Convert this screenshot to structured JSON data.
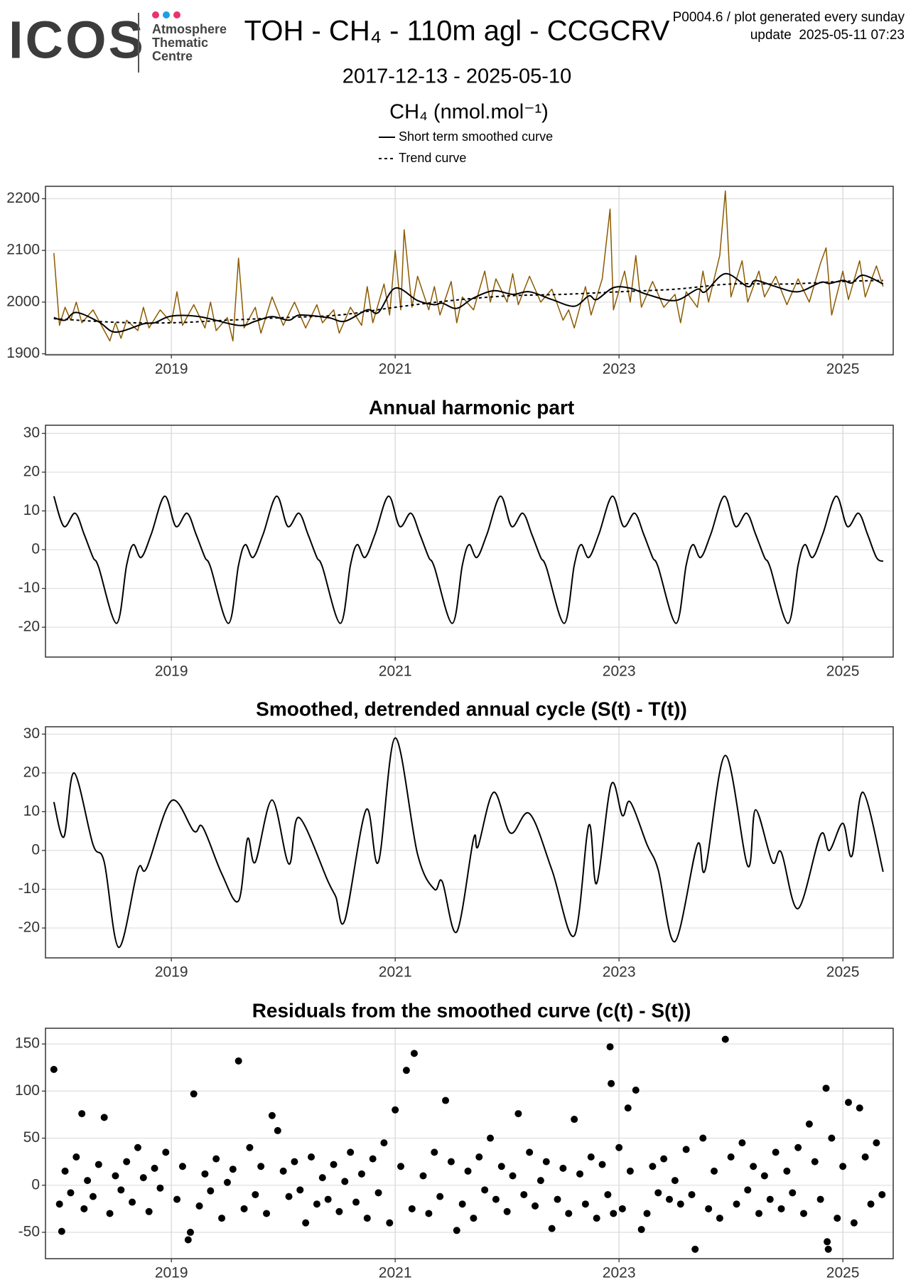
{
  "header": {
    "logo": "ICOS",
    "logo_sub": [
      "Atmosphere",
      "Thematic",
      "Centre"
    ],
    "title": "TOH - CH₄ - 110m agl - CCGCRV",
    "note": "P0004.6 / plot generated every sunday",
    "update": "update  2025-05-11 07:23",
    "period": "2017-12-13 - 2025-05-10"
  },
  "chart_data": [
    {
      "type": "line",
      "ylabel": "CH₄ (nmol.mol⁻¹)",
      "xlim": [
        2017.875,
        2025.45
      ],
      "xticks": [
        2019,
        2021,
        2023,
        2025
      ],
      "ylim": [
        1898,
        2224
      ],
      "yticks": [
        1900,
        2000,
        2100,
        2200
      ],
      "grid": true,
      "series": [
        {
          "color": "#8b5a00",
          "x": [
            2017.95,
            2018.0,
            2018.05,
            2018.1,
            2018.15,
            2018.2,
            2018.3,
            2018.4,
            2018.45,
            2018.5,
            2018.55,
            2018.6,
            2018.7,
            2018.75,
            2018.8,
            2018.9,
            2019.0,
            2019.05,
            2019.1,
            2019.2,
            2019.3,
            2019.35,
            2019.4,
            2019.5,
            2019.55,
            2019.6,
            2019.65,
            2019.75,
            2019.8,
            2019.9,
            2020.0,
            2020.1,
            2020.2,
            2020.3,
            2020.35,
            2020.45,
            2020.5,
            2020.6,
            2020.7,
            2020.75,
            2020.8,
            2020.9,
            2020.95,
            2021.0,
            2021.05,
            2021.08,
            2021.15,
            2021.2,
            2021.3,
            2021.35,
            2021.4,
            2021.5,
            2021.55,
            2021.6,
            2021.7,
            2021.8,
            2021.85,
            2021.9,
            2022.0,
            2022.05,
            2022.1,
            2022.2,
            2022.3,
            2022.4,
            2022.5,
            2022.55,
            2022.6,
            2022.7,
            2022.75,
            2022.85,
            2022.92,
            2022.95,
            2023.05,
            2023.1,
            2023.15,
            2023.2,
            2023.3,
            2023.4,
            2023.5,
            2023.55,
            2023.6,
            2023.7,
            2023.75,
            2023.8,
            2023.9,
            2023.95,
            2024.0,
            2024.1,
            2024.15,
            2024.25,
            2024.3,
            2024.4,
            2024.5,
            2024.6,
            2024.7,
            2024.8,
            2024.85,
            2024.9,
            2025.0,
            2025.05,
            2025.15,
            2025.2,
            2025.3,
            2025.36
          ],
          "values": [
            2095,
            1955,
            1990,
            1965,
            2000,
            1960,
            1985,
            1945,
            1925,
            1960,
            1930,
            1965,
            1945,
            1990,
            1950,
            1985,
            1960,
            2020,
            1955,
            1995,
            1950,
            2000,
            1945,
            1970,
            1925,
            2085,
            1950,
            1990,
            1940,
            2010,
            1955,
            2000,
            1950,
            1995,
            1960,
            1985,
            1940,
            1990,
            1955,
            2030,
            1960,
            2035,
            1975,
            2100,
            1985,
            2140,
            1990,
            2050,
            1985,
            2030,
            1975,
            2040,
            1960,
            2010,
            1985,
            2060,
            2000,
            2045,
            2000,
            2055,
            1995,
            2050,
            2000,
            2025,
            1965,
            1985,
            1950,
            2030,
            1975,
            2045,
            2180,
            1985,
            2060,
            2000,
            2090,
            1990,
            2040,
            1990,
            2015,
            1960,
            2020,
            1990,
            2060,
            2000,
            2090,
            2215,
            2010,
            2080,
            2000,
            2060,
            2010,
            2050,
            1995,
            2045,
            2000,
            2075,
            2105,
            1975,
            2060,
            2005,
            2080,
            2010,
            2070,
            2030
          ]
        },
        {
          "name": "Short term smoothed curve",
          "color": "#000000",
          "smooth": true,
          "x": [
            2017.95,
            2018.05,
            2018.15,
            2018.35,
            2018.5,
            2018.75,
            2018.85,
            2019.0,
            2019.25,
            2019.6,
            2019.75,
            2019.9,
            2020.05,
            2020.15,
            2020.4,
            2020.55,
            2020.75,
            2020.85,
            2021.0,
            2021.2,
            2021.35,
            2021.42,
            2021.55,
            2021.7,
            2021.88,
            2022.05,
            2022.2,
            2022.4,
            2022.6,
            2022.73,
            2022.8,
            2022.95,
            2023.1,
            2023.25,
            2023.5,
            2023.7,
            2023.77,
            2023.95,
            2024.15,
            2024.22,
            2024.4,
            2024.6,
            2024.8,
            2024.88,
            2025.0,
            2025.08,
            2025.18,
            2025.36
          ],
          "values": [
            1970,
            1965,
            1980,
            1962,
            1942,
            1958,
            1960,
            1973,
            1972,
            1955,
            1963,
            1972,
            1965,
            1975,
            1970,
            1963,
            1985,
            1980,
            2027,
            2003,
            1995,
            1998,
            1988,
            2008,
            2022,
            2015,
            2020,
            2005,
            1992,
            2012,
            2005,
            2028,
            2027,
            2015,
            2003,
            2025,
            2020,
            2055,
            2030,
            2042,
            2030,
            2020,
            2038,
            2036,
            2042,
            2037,
            2052,
            2035
          ]
        },
        {
          "name": "Trend curve",
          "color": "#000000",
          "smooth": true,
          "linestyle": "dashed",
          "x": [
            2017.95,
            2018.5,
            2019.0,
            2019.5,
            2020.0,
            2020.5,
            2021.0,
            2021.5,
            2022.0,
            2022.5,
            2023.0,
            2023.5,
            2024.0,
            2024.5,
            2025.0,
            2025.36
          ],
          "values": [
            1968,
            1961,
            1960,
            1965,
            1970,
            1975,
            1990,
            2003,
            2012,
            2015,
            2020,
            2025,
            2035,
            2035,
            2040,
            2042
          ]
        }
      ]
    },
    {
      "type": "line",
      "title": "Annual harmonic part",
      "xlim": [
        2017.875,
        2025.45
      ],
      "xticks": [
        2019,
        2021,
        2023,
        2025
      ],
      "ylim": [
        -27.7,
        32.1
      ],
      "yticks": [
        -20,
        -10,
        0,
        10,
        20,
        30
      ],
      "grid": true,
      "series": [
        {
          "color": "#000000",
          "smooth": true,
          "x": [
            2017.95,
            2018.04,
            2018.14,
            2018.22,
            2018.3,
            2018.35,
            2018.51,
            2018.6,
            2018.66,
            2018.73,
            2018.82,
            2018.94,
            2019.04,
            2019.14,
            2019.22,
            2019.3,
            2019.35,
            2019.51,
            2019.6,
            2019.66,
            2019.73,
            2019.82,
            2019.94,
            2020.04,
            2020.14,
            2020.22,
            2020.3,
            2020.35,
            2020.51,
            2020.6,
            2020.66,
            2020.73,
            2020.82,
            2020.94,
            2021.04,
            2021.14,
            2021.22,
            2021.3,
            2021.35,
            2021.51,
            2021.6,
            2021.66,
            2021.73,
            2021.82,
            2021.94,
            2022.04,
            2022.14,
            2022.22,
            2022.3,
            2022.35,
            2022.51,
            2022.6,
            2022.66,
            2022.73,
            2022.82,
            2022.94,
            2023.04,
            2023.14,
            2023.22,
            2023.3,
            2023.35,
            2023.51,
            2023.6,
            2023.66,
            2023.73,
            2023.82,
            2023.94,
            2024.04,
            2024.14,
            2024.22,
            2024.3,
            2024.35,
            2024.51,
            2024.6,
            2024.66,
            2024.73,
            2024.82,
            2024.94,
            2025.04,
            2025.14,
            2025.22,
            2025.3,
            2025.36
          ],
          "values": [
            13.8,
            6,
            9.4,
            4,
            -2,
            -4.5,
            -19,
            -4,
            1.3,
            -2,
            4,
            13.8,
            6,
            9.4,
            4,
            -2,
            -4.5,
            -19,
            -4,
            1.3,
            -2,
            4,
            13.8,
            6,
            9.4,
            4,
            -2,
            -4.5,
            -19,
            -4,
            1.3,
            -2,
            4,
            13.8,
            6,
            9.4,
            4,
            -2,
            -4.5,
            -19,
            -4,
            1.3,
            -2,
            4,
            13.8,
            6,
            9.4,
            4,
            -2,
            -4.5,
            -19,
            -4,
            1.3,
            -2,
            4,
            13.8,
            6,
            9.4,
            4,
            -2,
            -4.5,
            -19,
            -4,
            1.3,
            -2,
            4,
            13.8,
            6,
            9.4,
            4,
            -2,
            -4.5,
            -19,
            -4,
            1.3,
            -2,
            4,
            13.8,
            6,
            9.4,
            4,
            -2,
            -3
          ]
        }
      ]
    },
    {
      "type": "line",
      "title": "Smoothed, detrended annual cycle (S(t) - T(t))",
      "xlim": [
        2017.875,
        2025.45
      ],
      "xticks": [
        2019,
        2021,
        2023,
        2025
      ],
      "ylim": [
        -27.7,
        31.9
      ],
      "yticks": [
        -20,
        -10,
        0,
        10,
        20,
        30
      ],
      "grid": true,
      "series": [
        {
          "color": "#000000",
          "smooth": true,
          "x": [
            2017.95,
            2018.04,
            2018.13,
            2018.3,
            2018.4,
            2018.53,
            2018.7,
            2018.78,
            2019.0,
            2019.2,
            2019.28,
            2019.45,
            2019.6,
            2019.68,
            2019.75,
            2019.9,
            2020.05,
            2020.14,
            2020.4,
            2020.47,
            2020.55,
            2020.74,
            2020.85,
            2021.0,
            2021.2,
            2021.35,
            2021.42,
            2021.55,
            2021.7,
            2021.74,
            2021.88,
            2022.03,
            2022.2,
            2022.4,
            2022.6,
            2022.73,
            2022.8,
            2022.93,
            2023.03,
            2023.1,
            2023.25,
            2023.35,
            2023.5,
            2023.7,
            2023.77,
            2023.95,
            2024.15,
            2024.22,
            2024.37,
            2024.45,
            2024.6,
            2024.8,
            2024.88,
            2025.0,
            2025.08,
            2025.18,
            2025.36
          ],
          "values": [
            12.5,
            3.5,
            20,
            1.5,
            -3,
            -25,
            -5,
            -4.5,
            12.8,
            5,
            6,
            -6,
            -13,
            3,
            -3,
            13,
            -3.5,
            8.5,
            -8,
            -12,
            -18,
            10.5,
            -3,
            29,
            -1,
            -10,
            -8,
            -21,
            3,
            1,
            15,
            4.5,
            9.5,
            -5,
            -22,
            6.5,
            -8.5,
            17,
            9,
            12.5,
            1.5,
            -5,
            -23.5,
            1.5,
            -5,
            24.5,
            -4,
            10.5,
            -3,
            -0.5,
            -15,
            4,
            0,
            7,
            -1.5,
            15,
            -5.5
          ]
        }
      ]
    },
    {
      "type": "scatter",
      "title": "Residuals from the smoothed curve (c(t) - S(t))",
      "xlim": [
        2017.875,
        2025.45
      ],
      "xticks": [
        2019,
        2021,
        2023,
        2025
      ],
      "ylim": [
        -78,
        166.7
      ],
      "yticks": [
        -50,
        0,
        50,
        100,
        150
      ],
      "grid": true,
      "color": "#000000",
      "x": [
        2017.95,
        2018.02,
        2018.2,
        2018.4,
        2019.15,
        2019.17,
        2019.2,
        2019.6,
        2019.9,
        2021.0,
        2021.1,
        2021.17,
        2021.45,
        2021.55,
        2022.1,
        2022.6,
        2022.4,
        2022.92,
        2022.93,
        2022.95,
        2023.08,
        2023.15,
        2023.2,
        2023.68,
        2023.95,
        2024.7,
        2024.85,
        2024.86,
        2024.87,
        2025.05,
        2025.15,
        2025.3,
        2020.2,
        2019.95,
        2018.7,
        2018.0,
        2018.05,
        2018.1,
        2018.15,
        2018.22,
        2018.25,
        2018.3,
        2018.35,
        2018.45,
        2018.5,
        2018.55,
        2018.6,
        2018.65,
        2018.75,
        2018.8,
        2018.85,
        2018.9,
        2018.95,
        2019.05,
        2019.1,
        2019.25,
        2019.3,
        2019.35,
        2019.4,
        2019.45,
        2019.5,
        2019.55,
        2019.65,
        2019.7,
        2019.75,
        2019.8,
        2019.85,
        2020.0,
        2020.05,
        2020.1,
        2020.15,
        2020.25,
        2020.3,
        2020.35,
        2020.4,
        2020.45,
        2020.5,
        2020.55,
        2020.6,
        2020.65,
        2020.7,
        2020.75,
        2020.8,
        2020.85,
        2020.9,
        2020.95,
        2021.05,
        2021.15,
        2021.25,
        2021.3,
        2021.35,
        2021.4,
        2021.5,
        2021.6,
        2021.65,
        2021.7,
        2021.75,
        2021.8,
        2021.85,
        2021.9,
        2021.95,
        2022.0,
        2022.05,
        2022.15,
        2022.2,
        2022.25,
        2022.3,
        2022.35,
        2022.45,
        2022.5,
        2022.55,
        2022.65,
        2022.7,
        2022.75,
        2022.8,
        2022.85,
        2022.9,
        2023.0,
        2023.03,
        2023.1,
        2023.25,
        2023.3,
        2023.35,
        2023.4,
        2023.45,
        2023.5,
        2023.55,
        2023.6,
        2023.65,
        2023.75,
        2023.8,
        2023.85,
        2023.9,
        2024.0,
        2024.05,
        2024.1,
        2024.15,
        2024.2,
        2024.25,
        2024.3,
        2024.35,
        2024.4,
        2024.45,
        2024.5,
        2024.55,
        2024.6,
        2024.65,
        2024.75,
        2024.8,
        2024.9,
        2024.95,
        2025.0,
        2025.1,
        2025.2,
        2025.25,
        2025.35
      ],
      "values": [
        123,
        -49,
        76,
        72,
        -58,
        -50,
        97,
        132,
        74,
        80,
        122,
        140,
        90,
        -48,
        76,
        70,
        -46,
        147,
        108,
        -30,
        82,
        101,
        -47,
        -68,
        155,
        65,
        103,
        -60,
        -68,
        88,
        82,
        45,
        -40,
        58,
        40,
        -20,
        15,
        -8,
        30,
        -25,
        5,
        -12,
        22,
        -30,
        10,
        -5,
        25,
        -18,
        8,
        -28,
        18,
        -3,
        35,
        -15,
        20,
        -22,
        12,
        -6,
        28,
        -35,
        3,
        17,
        -25,
        40,
        -10,
        20,
        -30,
        15,
        -12,
        25,
        -5,
        30,
        -20,
        8,
        -15,
        22,
        -28,
        4,
        35,
        -18,
        12,
        -35,
        28,
        -8,
        45,
        -40,
        20,
        -25,
        10,
        -30,
        35,
        -12,
        25,
        -20,
        15,
        -35,
        30,
        -5,
        50,
        -15,
        20,
        -28,
        10,
        -10,
        35,
        -22,
        5,
        25,
        -15,
        18,
        -30,
        12,
        -20,
        30,
        -35,
        22,
        -10,
        40,
        -25,
        15,
        -30,
        20,
        -8,
        28,
        -15,
        5,
        -20,
        38,
        -10,
        50,
        -25,
        15,
        -35,
        30,
        -20,
        45,
        -5,
        20,
        -30,
        10,
        -15,
        35,
        -25,
        15,
        -8,
        40,
        -30,
        25,
        -15,
        50,
        -35,
        20,
        -40,
        30,
        -20,
        -10
      ]
    }
  ]
}
